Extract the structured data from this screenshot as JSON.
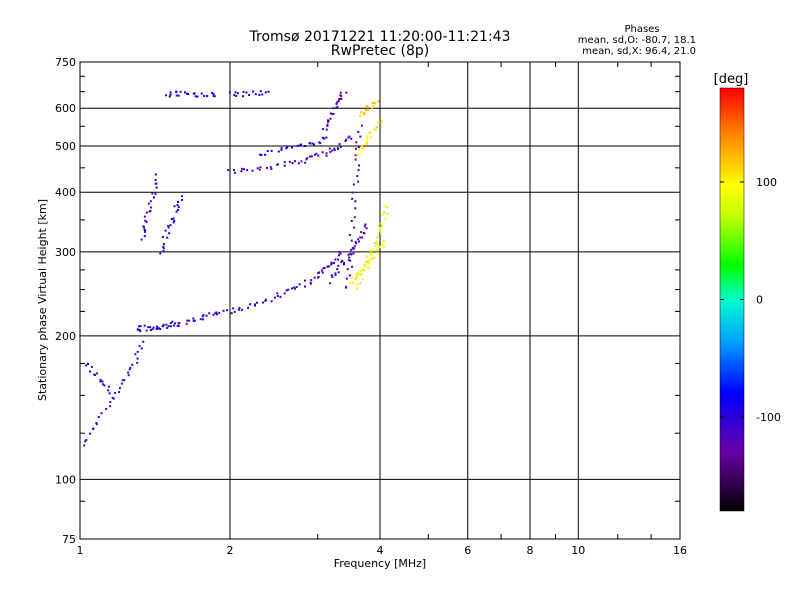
{
  "chart_data": {
    "type": "scatter",
    "title": "Tromsø 20171221 11:20:00-11:21:43",
    "subtitle": "RwPretec (8p)",
    "xlabel": "Frequency [MHz]",
    "ylabel": "Stationary phase Virtual Height [km]",
    "x_scale": "log",
    "y_scale": "log",
    "xlim": [
      1,
      16
    ],
    "ylim": [
      75,
      750
    ],
    "x_ticks": [
      1,
      2,
      4,
      6,
      8,
      10,
      16
    ],
    "x_tick_labels": [
      "1",
      "2",
      "4",
      "6",
      "8",
      "10",
      "16"
    ],
    "y_ticks": [
      75,
      100,
      200,
      300,
      400,
      500,
      600,
      750
    ],
    "y_tick_labels": [
      "75",
      "100",
      "200",
      "300",
      "400",
      "500",
      "600",
      "750"
    ],
    "grid": true,
    "stats": {
      "title": "Phases",
      "line1": "mean, sd,O: -80.7, 18.1",
      "line2": "mean, sd,X:  96.4, 21.0"
    },
    "colorbar": {
      "label": "[deg]",
      "range": [
        -180,
        180
      ],
      "ticks": [
        -100,
        0,
        100
      ],
      "tick_labels": [
        "-100",
        "0",
        "100"
      ]
    },
    "traces": [
      {
        "x": [
          1.02,
          1.1,
          1.2,
          1.28,
          1.35
        ],
        "y": [
          118,
          135,
          155,
          175,
          195
        ],
        "phase": -110
      },
      {
        "x": [
          1.03,
          1.1,
          1.18
        ],
        "y": [
          175,
          160,
          150
        ],
        "phase": -95
      },
      {
        "x": [
          1.3,
          1.45,
          1.6,
          1.75,
          1.9,
          2.1,
          2.35,
          2.6,
          2.85,
          3.05,
          3.2,
          3.35
        ],
        "y": [
          207,
          209,
          212,
          218,
          223,
          228,
          236,
          247,
          258,
          270,
          283,
          298
        ],
        "phase": -105
      },
      {
        "x": [
          1.3,
          1.45,
          1.6
        ],
        "y": [
          205,
          209,
          215
        ],
        "phase": -100
      },
      {
        "x": [
          2.0,
          2.25,
          2.55,
          2.85,
          3.1,
          3.3,
          3.5
        ],
        "y": [
          440,
          447,
          457,
          468,
          482,
          500,
          525
        ],
        "phase": -112
      },
      {
        "x": [
          2.3,
          2.6,
          2.9,
          3.15
        ],
        "y": [
          480,
          492,
          505,
          520
        ],
        "phase": -88
      },
      {
        "x": [
          3.1,
          3.2,
          3.3,
          3.4
        ],
        "y": [
          540,
          580,
          620,
          650
        ],
        "phase": -118
      },
      {
        "x": [
          1.33,
          1.36,
          1.4,
          1.44
        ],
        "y": [
          320,
          350,
          390,
          440
        ],
        "phase": -108
      },
      {
        "x": [
          1.45,
          1.5,
          1.55,
          1.6
        ],
        "y": [
          300,
          330,
          360,
          400
        ],
        "phase": -92
      },
      {
        "x": [
          1.5,
          1.6,
          1.75,
          1.9
        ],
        "y": [
          640,
          645,
          640,
          642
        ],
        "phase": -95
      },
      {
        "x": [
          2.0,
          2.2,
          2.4
        ],
        "y": [
          640,
          645,
          650
        ],
        "phase": -92
      },
      {
        "x": [
          3.45,
          3.5,
          3.55,
          3.6,
          3.65
        ],
        "y": [
          250,
          300,
          380,
          470,
          560
        ],
        "phase": -120
      },
      {
        "x": [
          3.2,
          3.35,
          3.5,
          3.65,
          3.8
        ],
        "y": [
          260,
          280,
          300,
          320,
          345
        ],
        "phase": -110
      },
      {
        "x": [
          3.5,
          3.65,
          3.8,
          3.95,
          4.1
        ],
        "y": [
          260,
          270,
          285,
          300,
          320
        ],
        "phase": 100
      },
      {
        "x": [
          3.6,
          3.75,
          3.9,
          4.05,
          4.15
        ],
        "y": [
          250,
          280,
          310,
          340,
          380
        ],
        "phase": 80
      },
      {
        "x": [
          3.6,
          3.75,
          3.9,
          4.05
        ],
        "y": [
          480,
          510,
          540,
          570
        ],
        "phase": 100
      },
      {
        "x": [
          3.65,
          3.8,
          3.95
        ],
        "y": [
          580,
          600,
          620
        ],
        "phase": 120
      }
    ]
  }
}
